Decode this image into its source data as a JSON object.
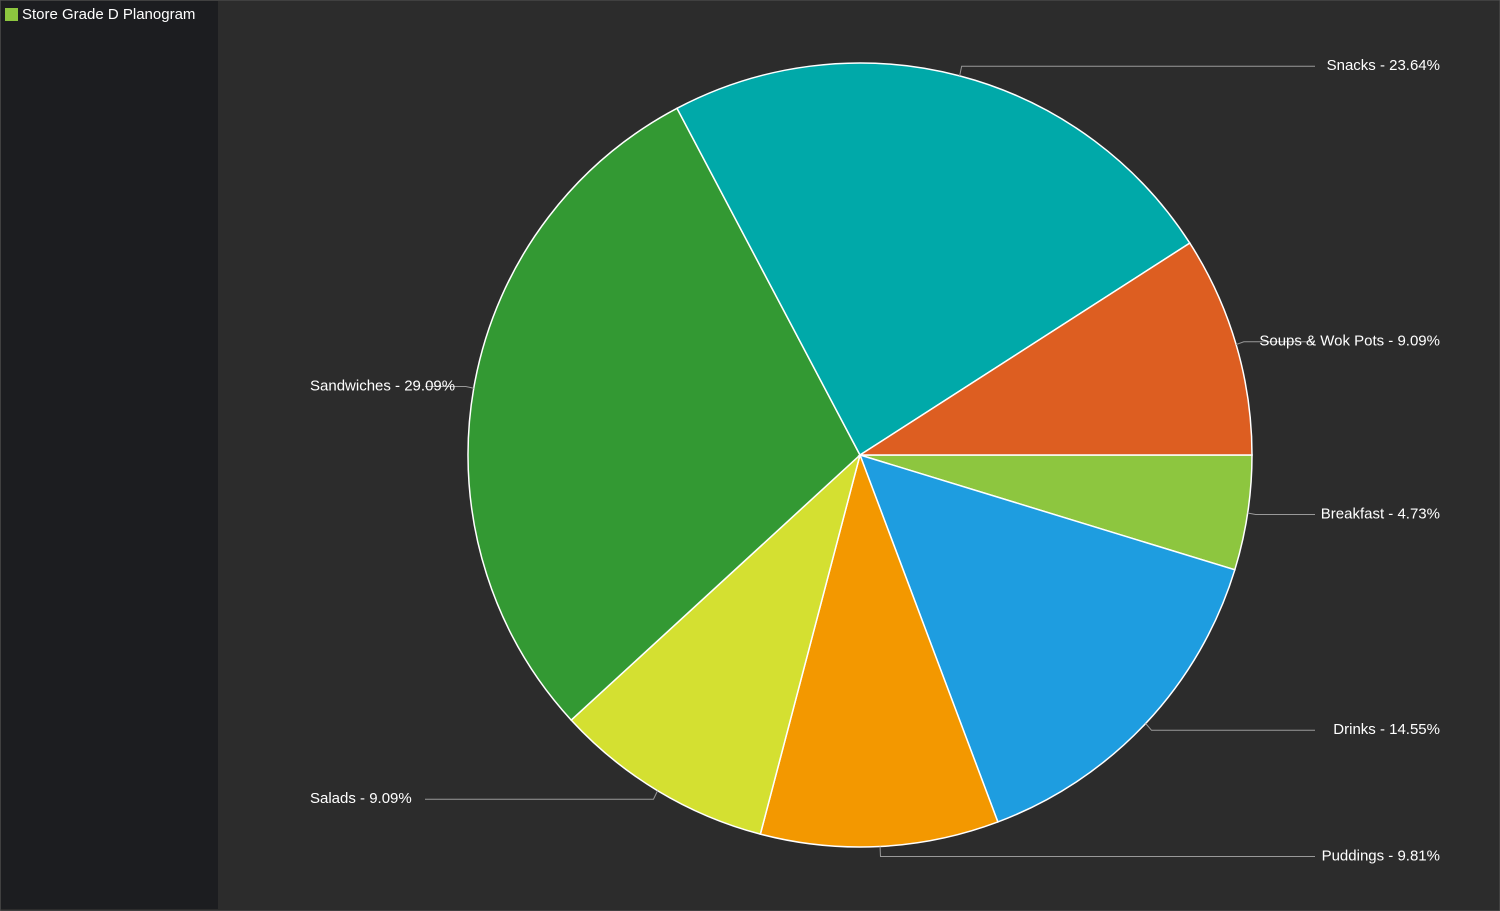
{
  "chart_data": {
    "type": "pie",
    "legend": "top-left",
    "series": [
      {
        "name": "Store Grade D Planogram",
        "color": "#8dc63f",
        "values": [
          4.73,
          14.55,
          9.81,
          9.09,
          29.09,
          23.64,
          9.09
        ],
        "value_labels": [
          "Breakfast - 4.73%",
          "Drinks - 14.55%",
          "Puddings - 9.81%",
          "Salads - 9.09%",
          "Sandwiches - 29.09%",
          "Snacks - 23.64%",
          "Soups & Wok Pots - 9.09%"
        ],
        "colors": [
          "#8dc63f",
          "#1e9de0",
          "#f39800",
          "#d4e031",
          "#339933",
          "#00a9a9",
          "#dd5e21"
        ]
      }
    ]
  }
}
